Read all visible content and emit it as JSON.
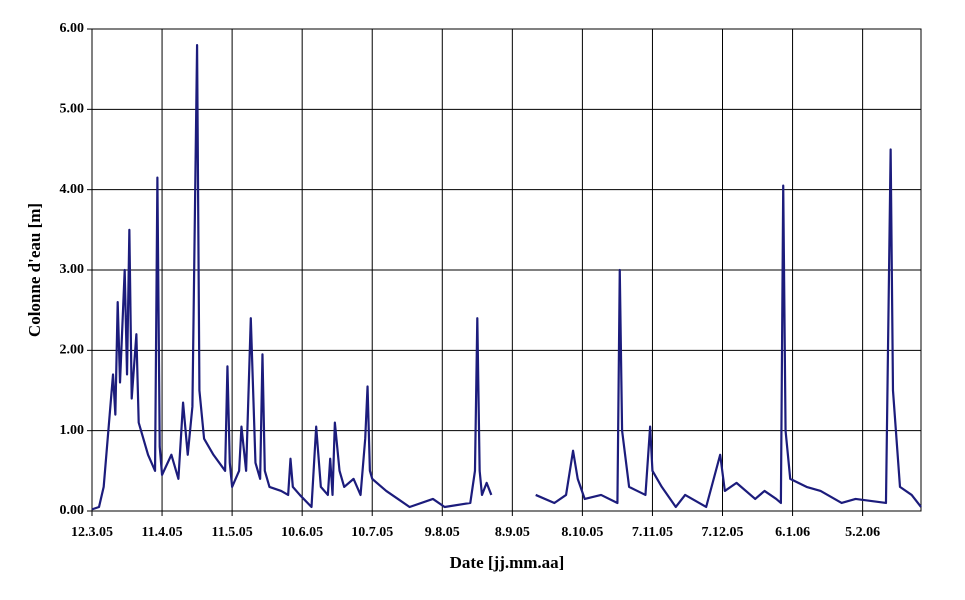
{
  "chart_data": {
    "type": "line",
    "x_label": "Date [jj.mm.aa]",
    "y_label": "Colonne d'eau [m]",
    "grid": true,
    "xlim": [
      "2005-03-12",
      "2006-03-02"
    ],
    "ylim": [
      0,
      6
    ],
    "xticks": [
      {
        "value": "2005-03-12",
        "label": "12.3.05"
      },
      {
        "value": "2005-04-11",
        "label": "11.4.05"
      },
      {
        "value": "2005-05-11",
        "label": "11.5.05"
      },
      {
        "value": "2005-06-10",
        "label": "10.6.05"
      },
      {
        "value": "2005-07-10",
        "label": "10.7.05"
      },
      {
        "value": "2005-08-09",
        "label": "9.8.05"
      },
      {
        "value": "2005-09-08",
        "label": "8.9.05"
      },
      {
        "value": "2005-10-08",
        "label": "8.10.05"
      },
      {
        "value": "2005-11-07",
        "label": "7.11.05"
      },
      {
        "value": "2005-12-07",
        "label": "7.12.05"
      },
      {
        "value": "2006-01-06",
        "label": "6.1.06"
      },
      {
        "value": "2006-02-05",
        "label": "5.2.06"
      }
    ],
    "yticks": [
      {
        "value": 0,
        "label": "0.00"
      },
      {
        "value": 1,
        "label": "1.00"
      },
      {
        "value": 2,
        "label": "2.00"
      },
      {
        "value": 3,
        "label": "3.00"
      },
      {
        "value": 4,
        "label": "4.00"
      },
      {
        "value": 5,
        "label": "5.00"
      },
      {
        "value": 6,
        "label": "6.00"
      }
    ],
    "x": [
      "2005-03-12",
      "2005-03-15",
      "2005-03-17",
      "2005-03-19",
      "2005-03-21",
      "2005-03-22",
      "2005-03-23",
      "2005-03-24",
      "2005-03-26",
      "2005-03-27",
      "2005-03-28",
      "2005-03-29",
      "2005-03-31",
      "2005-04-01",
      "2005-04-02",
      "2005-04-05",
      "2005-04-08",
      "2005-04-09",
      "2005-04-10",
      "2005-04-11",
      "2005-04-15",
      "2005-04-18",
      "2005-04-20",
      "2005-04-22",
      "2005-04-24",
      "2005-04-26",
      "2005-04-27",
      "2005-04-29",
      "2005-05-03",
      "2005-05-08",
      "2005-05-09",
      "2005-05-10",
      "2005-05-11",
      "2005-05-14",
      "2005-05-15",
      "2005-05-17",
      "2005-05-19",
      "2005-05-21",
      "2005-05-23",
      "2005-05-24",
      "2005-05-25",
      "2005-05-27",
      "2005-06-01",
      "2005-06-04",
      "2005-06-05",
      "2005-06-06",
      "2005-06-09",
      "2005-06-14",
      "2005-06-16",
      "2005-06-18",
      "2005-06-21",
      "2005-06-22",
      "2005-06-23",
      "2005-06-24",
      "2005-06-26",
      "2005-06-28",
      "2005-07-02",
      "2005-07-05",
      "2005-07-07",
      "2005-07-08",
      "2005-07-09",
      "2005-07-10",
      "2005-07-16",
      "2005-07-21",
      "2005-07-26",
      "2005-08-05",
      "2005-08-10",
      "2005-08-21",
      "2005-08-23",
      "2005-08-24",
      "2005-08-25",
      "2005-08-26",
      "2005-08-28",
      "2005-08-30",
      "2005-09-08",
      "2005-09-18",
      "2005-09-26",
      "2005-10-01",
      "2005-10-04",
      "2005-10-06",
      "2005-10-09",
      "2005-10-16",
      "2005-10-23",
      "2005-10-24",
      "2005-10-25",
      "2005-10-28",
      "2005-11-04",
      "2005-11-06",
      "2005-11-07",
      "2005-11-11",
      "2005-11-17",
      "2005-11-21",
      "2005-11-30",
      "2005-12-06",
      "2005-12-08",
      "2005-12-13",
      "2005-12-21",
      "2005-12-25",
      "2005-12-30",
      "2006-01-01",
      "2006-01-02",
      "2006-01-03",
      "2006-01-05",
      "2006-01-12",
      "2006-01-18",
      "2006-01-27",
      "2006-02-02",
      "2006-02-15",
      "2006-02-17",
      "2006-02-18",
      "2006-02-21",
      "2006-02-26",
      "2006-03-02"
    ],
    "series": [
      {
        "color": "#1c1c7c",
        "values": [
          0.02,
          0.05,
          0.3,
          1.0,
          1.7,
          1.2,
          2.6,
          1.6,
          3.0,
          1.7,
          3.5,
          1.4,
          2.2,
          1.1,
          1.0,
          0.7,
          0.5,
          4.15,
          0.8,
          0.45,
          0.7,
          0.4,
          1.35,
          0.7,
          1.3,
          5.8,
          1.5,
          0.9,
          0.7,
          0.5,
          1.8,
          0.6,
          0.3,
          0.5,
          1.05,
          0.5,
          2.4,
          0.6,
          0.4,
          1.95,
          0.5,
          0.3,
          0.25,
          0.2,
          0.65,
          0.3,
          0.2,
          0.05,
          1.05,
          0.3,
          0.2,
          0.65,
          0.2,
          1.1,
          0.5,
          0.3,
          0.4,
          0.2,
          0.9,
          1.55,
          0.5,
          0.4,
          0.25,
          0.15,
          0.05,
          0.15,
          0.05,
          0.1,
          0.5,
          2.4,
          0.5,
          0.2,
          0.35,
          0.2,
          null,
          0.2,
          0.1,
          0.2,
          0.75,
          0.4,
          0.15,
          0.2,
          0.1,
          3.0,
          1.0,
          0.3,
          0.2,
          1.05,
          0.5,
          0.3,
          0.05,
          0.2,
          0.05,
          0.7,
          0.25,
          0.35,
          0.15,
          0.25,
          0.15,
          0.1,
          4.05,
          1.0,
          0.4,
          0.3,
          0.25,
          0.1,
          0.15,
          0.1,
          4.5,
          1.5,
          0.3,
          0.2,
          0.05
        ]
      }
    ]
  }
}
